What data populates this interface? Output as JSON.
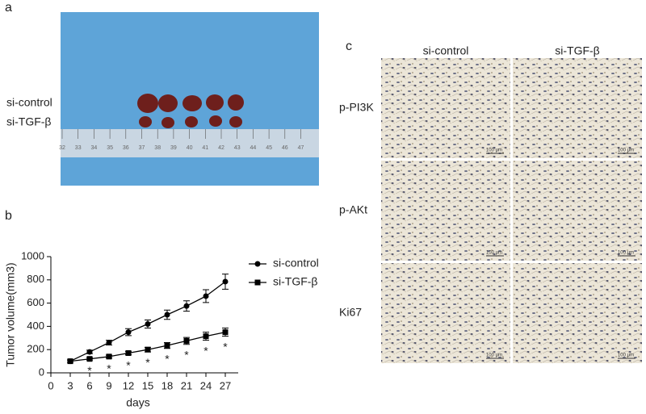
{
  "panel_a": {
    "letter": "a",
    "row_labels": [
      "si-control",
      "si-TGF-β"
    ],
    "ruler_labels": [
      "32",
      "33",
      "34",
      "35",
      "36",
      "37",
      "38",
      "39",
      "40",
      "41",
      "42",
      "43",
      "44",
      "45",
      "46",
      "47"
    ]
  },
  "panel_c": {
    "letter": "c",
    "columns": [
      "si-control",
      "si-TGF-β"
    ],
    "rows": [
      "p-PI3K",
      "p-AKt",
      "Ki67"
    ],
    "scale_label": "100 μm"
  },
  "chart_data": {
    "type": "line",
    "letter": "b",
    "x_label": "days",
    "y_label": "Tumor volume(mm3)",
    "x": [
      3,
      6,
      9,
      12,
      15,
      18,
      21,
      24,
      27
    ],
    "series": [
      {
        "name": "si-control",
        "color": "#000000",
        "marker": "circle",
        "values": [
          100,
          180,
          260,
          350,
          420,
          500,
          575,
          660,
          785
        ],
        "error": [
          10,
          15,
          20,
          30,
          35,
          40,
          45,
          55,
          65
        ]
      },
      {
        "name": "si-TGF-β",
        "color": "#000000",
        "marker": "square",
        "values": [
          100,
          120,
          140,
          170,
          200,
          235,
          275,
          315,
          350
        ],
        "error": [
          10,
          10,
          12,
          15,
          20,
          25,
          30,
          35,
          35
        ]
      }
    ],
    "significance": [
      null,
      "*",
      "*",
      "*",
      "*",
      "*",
      "*",
      "*",
      "*"
    ],
    "xlim": [
      0,
      29
    ],
    "xticks": [
      0,
      3,
      6,
      9,
      12,
      15,
      18,
      21,
      24,
      27
    ],
    "ylim": [
      0,
      1000
    ],
    "yticks": [
      0,
      200,
      400,
      600,
      800,
      1000
    ]
  }
}
